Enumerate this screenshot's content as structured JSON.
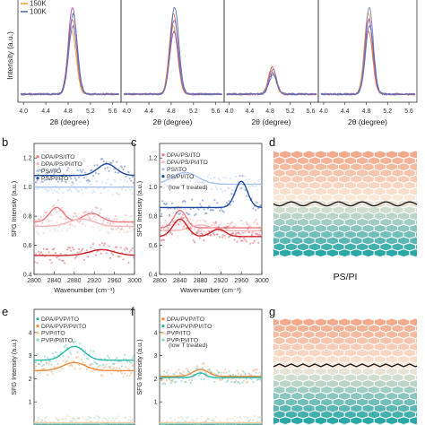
{
  "panel_labels": [
    "b",
    "c",
    "d",
    "e",
    "f",
    "g"
  ],
  "top_legend": [
    {
      "label": "150K",
      "color": "#f0a640"
    },
    {
      "label": "100K",
      "color": "#5b6fb5"
    }
  ],
  "chart_data": [
    {
      "type": "line",
      "panel": "top-1",
      "xlabel": "2θ (degree)",
      "ylabel": "Intensity (a.u.)",
      "xlim": [
        3.9,
        5.75
      ],
      "x_ticks": [
        "4.0",
        "4.4",
        "4.8",
        "5.2",
        "5.6"
      ],
      "peak_x": 4.88,
      "peak_height": 0.97
    },
    {
      "type": "line",
      "panel": "top-2",
      "xlabel": "2θ (degree)",
      "ylabel": "",
      "xlim": [
        3.9,
        5.75
      ],
      "x_ticks": [
        "4.0",
        "4.4",
        "4.8",
        "5.2",
        "5.6"
      ],
      "peak_x": 4.85,
      "peak_height": 0.97
    },
    {
      "type": "line",
      "panel": "top-3",
      "xlabel": "2θ (degree)",
      "ylabel": "",
      "xlim": [
        3.9,
        5.75
      ],
      "x_ticks": [
        "4.0",
        "4.4",
        "4.8",
        "5.2",
        "5.6"
      ],
      "peak_x": 4.85,
      "peak_height": 0.3
    },
    {
      "type": "line",
      "panel": "top-4",
      "xlabel": "2θ (degree)",
      "ylabel": "",
      "xlim": [
        3.9,
        5.75
      ],
      "x_ticks": [
        "4.0",
        "4.4",
        "4.8",
        "5.2",
        "5.6"
      ],
      "peak_x": 4.85,
      "peak_height": 0.97
    },
    {
      "type": "scatter",
      "panel": "b",
      "xlabel": "Wavenumber (cm⁻¹)",
      "ylabel": "SFG Intensity (a.u.)",
      "xlim": [
        2800,
        3000
      ],
      "ylim": [
        0.4,
        1.3
      ],
      "x_ticks": [
        "2800",
        "2840",
        "2880",
        "2920",
        "2960",
        "3000"
      ],
      "y_ticks": [
        "0.4",
        "0.6",
        "0.8",
        "1.0",
        "1.2"
      ],
      "series": [
        {
          "name": "DPA/PS/ITO",
          "color": "#e8787e",
          "base": 0.76,
          "peaks": [
            [
              2845,
              0.1,
              14
            ],
            [
              2915,
              0.06,
              18
            ]
          ]
        },
        {
          "name": "DPA/PS/PI/ITO",
          "color": "#f5b6b9",
          "base": 0.73,
          "peaks": [
            [
              2895,
              0.05,
              25
            ]
          ]
        },
        {
          "name": "PS/ITO",
          "color": "#a7c3ec",
          "base": 1.0,
          "peaks": []
        },
        {
          "name": "PS/PI/ITO",
          "color": "#1f4aa0",
          "base": 1.08,
          "peaks": [
            [
              2945,
              0.08,
              18
            ]
          ]
        },
        {
          "name": "",
          "color": "#cc2027",
          "base": 0.53,
          "peaks": [
            [
              2935,
              0.04,
              25
            ]
          ]
        }
      ]
    },
    {
      "type": "scatter",
      "panel": "c",
      "xlabel": "Wavenumber (cm⁻¹)",
      "ylabel": "SFG Intensity (a.u.)",
      "xlim": [
        2800,
        3000
      ],
      "ylim": [
        0.4,
        1.3
      ],
      "x_ticks": [
        "2800",
        "2840",
        "2880",
        "2920",
        "2960",
        "3000"
      ],
      "y_ticks": [
        "0.4",
        "0.6",
        "0.8",
        "1.0",
        "1.2"
      ],
      "series": [
        {
          "name": "DPA/PS/ITO",
          "color": "#e8787e",
          "base": 0.72,
          "peaks": [
            [
              2840,
              0.12,
              12
            ]
          ]
        },
        {
          "name": "DPA/PS/PI/ITO",
          "color": "#f5b6b9",
          "base": 0.7,
          "peaks": [
            [
              2880,
              0.04,
              20
            ]
          ]
        },
        {
          "name": "PS/ITO",
          "color": "#a7c3ec",
          "base": 1.02,
          "peaks": [
            [
              2850,
              0.08,
              25
            ]
          ]
        },
        {
          "name": "PS/PI/ITO",
          "color": "#1f4aa0",
          "base": 0.86,
          "peaks": [
            [
              2960,
              0.18,
              12
            ]
          ]
        },
        {
          "name": "",
          "color": "#cc2027",
          "base": 0.66,
          "peaks": [
            [
              2840,
              0.12,
              14
            ],
            [
              2915,
              0.05,
              14
            ]
          ]
        }
      ]
    },
    {
      "type": "scatter",
      "panel": "e",
      "xlabel": "",
      "ylabel": "SFG Intensity (a.u.)",
      "xlim": [
        2800,
        3000
      ],
      "ylim": [
        0,
        5
      ],
      "y_ticks": [
        "1",
        "2",
        "3",
        "4"
      ],
      "series": [
        {
          "name": "DPA/PVP/ITO",
          "color": "#2ab8a6",
          "base": 2.8,
          "peaks": [
            [
              2880,
              0.6,
              20
            ]
          ]
        },
        {
          "name": "DPA/PVP/PI/ITO",
          "color": "#f08a3c",
          "base": 2.35,
          "peaks": [
            [
              2880,
              0.35,
              22
            ]
          ]
        },
        {
          "name": "PVP/ITO",
          "color": "#f6c89a",
          "base": 0.1,
          "peaks": []
        },
        {
          "name": "PVP/PI/ITO",
          "color": "#8ad8cc",
          "base": 0.05,
          "peaks": []
        }
      ]
    },
    {
      "type": "scatter",
      "panel": "f",
      "xlabel": "",
      "ylabel": "SFG Intensity (a.u.)",
      "xlim": [
        2800,
        3000
      ],
      "ylim": [
        0,
        5
      ],
      "y_ticks": [
        "1",
        "2",
        "3",
        "4"
      ],
      "series": [
        {
          "name": "DPA/PVP/ITO",
          "color": "#f08a3c",
          "base": 2.1,
          "peaks": [
            [
              2880,
              0.3,
              15
            ]
          ]
        },
        {
          "name": "DPA/PVP/PI/ITO",
          "color": "#2ab8a6",
          "base": 2.05,
          "peaks": [
            [
              2880,
              0.2,
              10
            ]
          ]
        },
        {
          "name": "PVP/ITO",
          "color": "#f6c89a",
          "base": 0.1,
          "peaks": []
        },
        {
          "name": "PVP/PI/ITO",
          "color": "#8ad8cc",
          "base": 0.05,
          "peaks": []
        }
      ]
    }
  ],
  "annotations": {
    "c": "(low T treated)",
    "f": "(low T treated)",
    "d_caption": "PS/PI"
  },
  "colors": {
    "hex_top": "#f3a98c",
    "hex_mid": "#fbead9",
    "hex_bottom": "#2aa8a8",
    "interface_line": "#111111"
  }
}
